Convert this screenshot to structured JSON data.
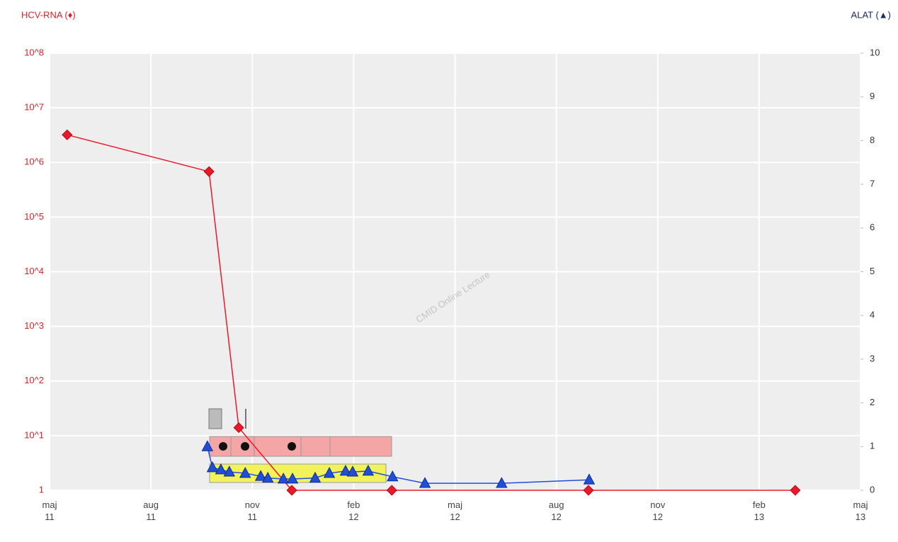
{
  "chart_data": {
    "type": "line",
    "title_left": "HCV-RNA (♦)",
    "title_right": "ALAT (▲)",
    "watermark": "CMID Online Lecture",
    "xlim": [
      0,
      24
    ],
    "xticks": [
      {
        "value": 0,
        "label": "maj 11"
      },
      {
        "value": 3,
        "label": "aug 11"
      },
      {
        "value": 6,
        "label": "nov 11"
      },
      {
        "value": 9,
        "label": "feb 12"
      },
      {
        "value": 12,
        "label": "maj 12"
      },
      {
        "value": 15,
        "label": "aug 12"
      },
      {
        "value": 18,
        "label": "nov 12"
      },
      {
        "value": 21,
        "label": "feb 13"
      },
      {
        "value": 24,
        "label": "maj 13"
      }
    ],
    "ylim": [
      1,
      100000000
    ],
    "log_y": true,
    "yticks": [
      1,
      {
        "value": 10,
        "label": "10^1"
      },
      {
        "value": 100,
        "label": "10^2"
      },
      {
        "value": 1000,
        "label": "10^3"
      },
      {
        "value": 10000,
        "label": "10^4"
      },
      {
        "value": 100000,
        "label": "10^5"
      },
      {
        "value": 1000000,
        "label": "10^6"
      },
      {
        "value": 10000000,
        "label": "10^7"
      },
      {
        "value": 100000000,
        "label": "10^8"
      }
    ],
    "y2lim": [
      0,
      10
    ],
    "y2ticks": [
      0,
      1,
      2,
      3,
      4,
      5,
      6,
      7,
      8,
      9,
      10
    ],
    "grid": true,
    "series": [
      {
        "name": "HCV-RNA",
        "color": "#e8192c",
        "marker": "diamond",
        "x": [
          0.52,
          4.72,
          5.6,
          7.17,
          10.13,
          15.95,
          22.07
        ],
        "values": [
          3200000,
          680000,
          14,
          1,
          1,
          1,
          1
        ]
      },
      {
        "name": "ALAT",
        "color": "#1f4fd6",
        "marker": "triangle",
        "axis": "y2",
        "x": [
          4.67,
          4.82,
          5.07,
          5.32,
          5.79,
          6.25,
          6.46,
          6.92,
          7.19,
          7.86,
          8.28,
          8.76,
          8.97,
          9.43,
          10.15,
          11.11,
          13.38,
          15.97
        ],
        "values": [
          1.0,
          0.52,
          0.47,
          0.42,
          0.39,
          0.32,
          0.28,
          0.26,
          0.26,
          0.28,
          0.39,
          0.44,
          0.42,
          0.44,
          0.31,
          0.16,
          0.16,
          0.24
        ]
      }
    ]
  }
}
